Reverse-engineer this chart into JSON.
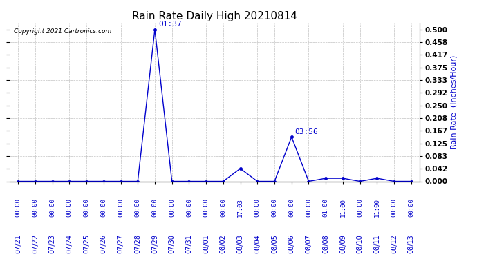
{
  "title": "Rain Rate Daily High 20210814",
  "copyright": "Copyright 2021 Cartronics.com",
  "ylabel_right": "Rain Rate  (Inches/Hour)",
  "line_color": "#0000cc",
  "background_color": "#ffffff",
  "grid_color": "#bbbbbb",
  "title_color": "#000000",
  "text_color_blue": "#0000cc",
  "yticks": [
    0.0,
    0.042,
    0.083,
    0.125,
    0.167,
    0.208,
    0.25,
    0.292,
    0.333,
    0.375,
    0.417,
    0.458,
    0.5
  ],
  "ylim": [
    0.0,
    0.52
  ],
  "dates": [
    "07/21",
    "07/22",
    "07/23",
    "07/24",
    "07/25",
    "07/26",
    "07/27",
    "07/28",
    "07/29",
    "07/30",
    "07/31",
    "08/01",
    "08/02",
    "08/03",
    "08/04",
    "08/05",
    "08/06",
    "08/07",
    "08/08",
    "08/09",
    "08/10",
    "08/11",
    "08/12",
    "08/13"
  ],
  "values": [
    0.0,
    0.0,
    0.0,
    0.0,
    0.0,
    0.0,
    0.0,
    0.0,
    0.5,
    0.0,
    0.0,
    0.0,
    0.0,
    0.042,
    0.0,
    0.0,
    0.146,
    0.0,
    0.01,
    0.01,
    0.0,
    0.01,
    0.0,
    0.0
  ],
  "time_labels": [
    {
      "idx": 0,
      "label": "00:00"
    },
    {
      "idx": 1,
      "label": "00:00"
    },
    {
      "idx": 2,
      "label": "00:00"
    },
    {
      "idx": 3,
      "label": "00:00"
    },
    {
      "idx": 4,
      "label": "00:00"
    },
    {
      "idx": 5,
      "label": "00:00"
    },
    {
      "idx": 6,
      "label": "00:00"
    },
    {
      "idx": 7,
      "label": "00:00"
    },
    {
      "idx": 8,
      "label": "00:00"
    },
    {
      "idx": 9,
      "label": "00:00"
    },
    {
      "idx": 10,
      "label": "00:00"
    },
    {
      "idx": 11,
      "label": "00:00"
    },
    {
      "idx": 12,
      "label": "00:00"
    },
    {
      "idx": 13,
      "label": "17:03"
    },
    {
      "idx": 14,
      "label": "00:00"
    },
    {
      "idx": 15,
      "label": "00:00"
    },
    {
      "idx": 16,
      "label": "00:00"
    },
    {
      "idx": 17,
      "label": "00:00"
    },
    {
      "idx": 18,
      "label": "01:00"
    },
    {
      "idx": 19,
      "label": "11:00"
    },
    {
      "idx": 20,
      "label": "00:00"
    },
    {
      "idx": 21,
      "label": "11:00"
    },
    {
      "idx": 22,
      "label": "00:00"
    },
    {
      "idx": 23,
      "label": "00:00"
    }
  ],
  "peak_annotations": [
    {
      "idx": 8,
      "label": "01:37",
      "value": 0.5
    },
    {
      "idx": 16,
      "label": "03:56",
      "value": 0.146
    }
  ]
}
